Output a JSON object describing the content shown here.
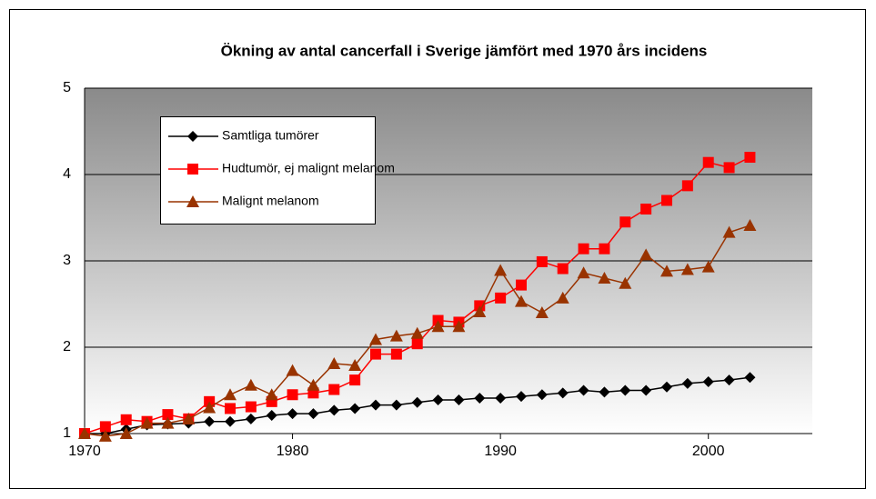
{
  "chart_data": {
    "type": "line",
    "title": "Ökning av antal cancerfall i Sverige jämfört med 1970 års incidens",
    "x": [
      1970,
      1971,
      1972,
      1973,
      1974,
      1975,
      1976,
      1977,
      1978,
      1979,
      1980,
      1981,
      1982,
      1983,
      1984,
      1985,
      1986,
      1987,
      1988,
      1989,
      1990,
      1991,
      1992,
      1993,
      1994,
      1995,
      1996,
      1997,
      1998,
      1999,
      2000,
      2001,
      2002
    ],
    "series": [
      {
        "name": "Samtliga tumörer",
        "color": "#000000",
        "marker": "diamond",
        "values": [
          1.0,
          1.0,
          1.05,
          1.1,
          1.11,
          1.12,
          1.14,
          1.14,
          1.17,
          1.21,
          1.23,
          1.23,
          1.27,
          1.29,
          1.33,
          1.33,
          1.36,
          1.39,
          1.39,
          1.41,
          1.41,
          1.43,
          1.45,
          1.47,
          1.5,
          1.48,
          1.5,
          1.5,
          1.54,
          1.58,
          1.6,
          1.62,
          1.65
        ]
      },
      {
        "name": "Hudtumör, ej malignt melanom",
        "color": "#ff0000",
        "marker": "square",
        "values": [
          1.0,
          1.08,
          1.16,
          1.14,
          1.22,
          1.17,
          1.37,
          1.29,
          1.31,
          1.37,
          1.45,
          1.47,
          1.51,
          1.62,
          1.92,
          1.92,
          2.04,
          2.31,
          2.29,
          2.48,
          2.57,
          2.72,
          2.99,
          2.91,
          3.14,
          3.14,
          3.45,
          3.6,
          3.7,
          3.87,
          4.14,
          4.08,
          4.2
        ]
      },
      {
        "name": "Malignt melanom",
        "color": "#993300",
        "marker": "triangle",
        "values": [
          1.0,
          0.97,
          1.0,
          1.12,
          1.12,
          1.17,
          1.3,
          1.45,
          1.56,
          1.45,
          1.73,
          1.56,
          1.81,
          1.79,
          2.09,
          2.13,
          2.16,
          2.24,
          2.24,
          2.41,
          2.89,
          2.53,
          2.4,
          2.57,
          2.86,
          2.8,
          2.74,
          3.07,
          2.88,
          2.9,
          2.93,
          3.33,
          3.41
        ]
      }
    ],
    "xlim": [
      1970,
      2005
    ],
    "xticks": [
      1970,
      1980,
      1990,
      2000
    ],
    "ylim": [
      1,
      5
    ],
    "yticks": [
      1,
      2,
      3,
      4,
      5
    ],
    "grid": true
  }
}
